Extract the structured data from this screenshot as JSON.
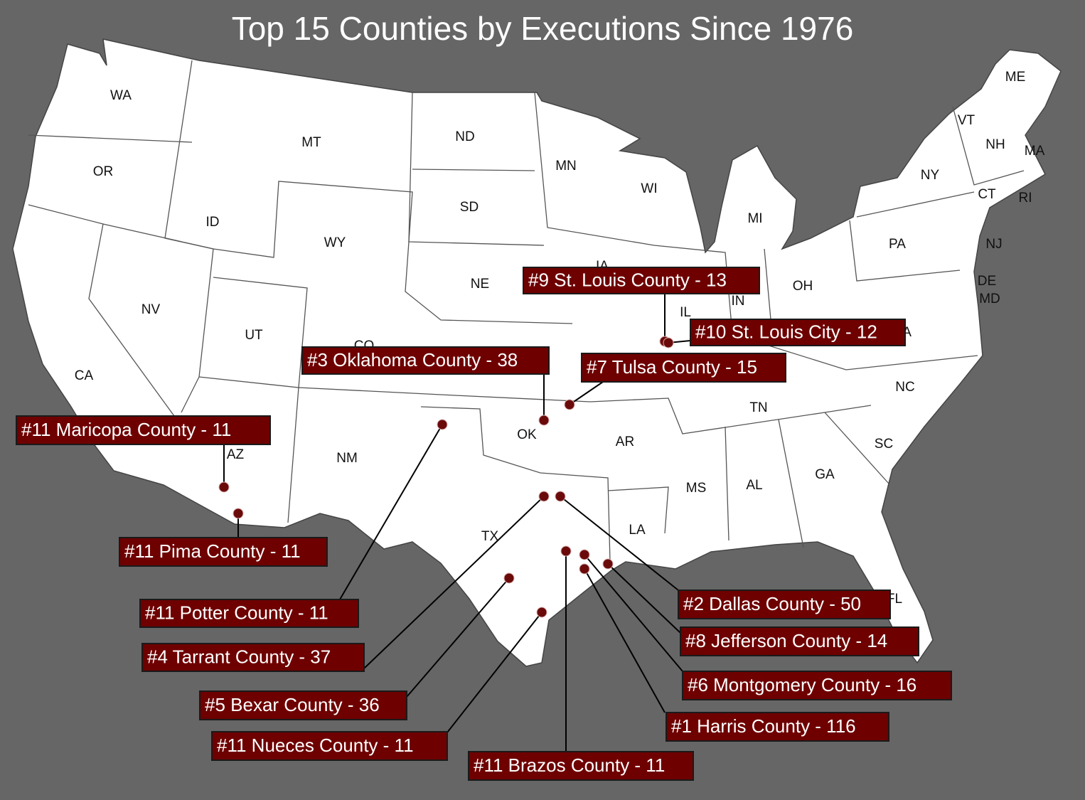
{
  "title": "Top 15 Counties by Executions Since 1976",
  "states": [
    "WA",
    "OR",
    "CA",
    "NV",
    "ID",
    "MT",
    "WY",
    "UT",
    "CO",
    "AZ",
    "NM",
    "ND",
    "SD",
    "NE",
    "OK",
    "TX",
    "MN",
    "IA",
    "AR",
    "LA",
    "WI",
    "IL",
    "MI",
    "IN",
    "OH",
    "TN",
    "MS",
    "AL",
    "GA",
    "FL",
    "SC",
    "NC",
    "VA",
    "PA",
    "NY",
    "VT",
    "NH",
    "ME",
    "MA",
    "RI",
    "CT",
    "NJ",
    "DE",
    "MD"
  ],
  "counties": [
    "#9 St. Louis County - 13",
    "#10 St. Louis City - 12",
    "#3 Oklahoma County - 38",
    "#7 Tulsa County - 15",
    "#11 Maricopa County - 11",
    "#11 Pima County - 11",
    "#11 Potter County - 11",
    "#4 Tarrant County - 37",
    "#5 Bexar County - 36",
    "#11 Nueces County - 11",
    "#11 Brazos County - 11",
    "#1 Harris County - 116",
    "#6 Montgomery County - 16",
    "#8 Jefferson County - 14",
    "#2 Dallas County - 50"
  ]
}
